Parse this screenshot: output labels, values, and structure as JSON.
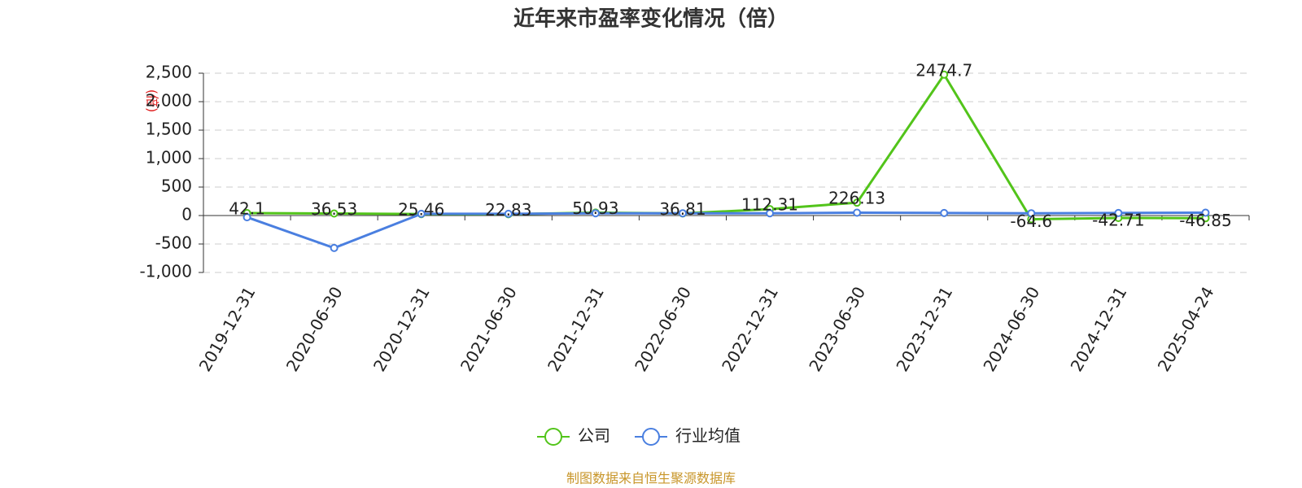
{
  "chart_data": {
    "type": "line",
    "title": "近年来市盈率变化情况（倍）",
    "ylabel": "(倍)",
    "source": "制图数据来自恒生聚源数据库",
    "categories": [
      "2019-12-31",
      "2020-06-30",
      "2020-12-31",
      "2021-06-30",
      "2021-12-31",
      "2022-06-30",
      "2022-12-31",
      "2023-06-30",
      "2023-12-31",
      "2024-06-30",
      "2024-12-31",
      "2025-04-24"
    ],
    "series": [
      {
        "name": "公司",
        "color": "#52c41a",
        "values": [
          42.1,
          36.53,
          25.46,
          22.83,
          50.93,
          36.81,
          112.31,
          226.13,
          2474.7,
          -64.6,
          -42.71,
          -46.85
        ]
      },
      {
        "name": "行业均值",
        "color": "#4a7fe0",
        "values": [
          -30,
          -570,
          30,
          30,
          40,
          40,
          40,
          50,
          45,
          40,
          45,
          50
        ]
      }
    ],
    "ylim": [
      -1000,
      2500
    ],
    "yticks": [
      {
        "value": -1000,
        "label": "-1,000"
      },
      -500,
      0,
      500,
      {
        "value": 1000,
        "label": "1,000"
      },
      {
        "value": 1500,
        "label": "1,500"
      },
      {
        "value": 2000,
        "label": "2,000"
      },
      {
        "value": 2500,
        "label": "2,500"
      }
    ],
    "grid": true
  }
}
